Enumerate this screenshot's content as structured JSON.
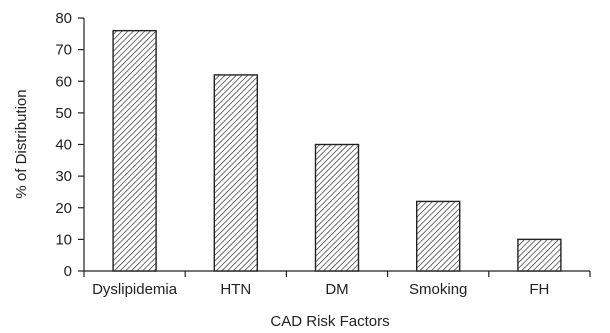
{
  "chart_data": {
    "type": "bar",
    "title": "",
    "xlabel": "CAD Risk Factors",
    "ylabel": "% of Distribution",
    "categories": [
      "Dyslipidemia",
      "HTN",
      "DM",
      "Smoking",
      "FH"
    ],
    "values": [
      76,
      62,
      40,
      22,
      10
    ],
    "ylim": [
      0,
      80
    ],
    "yticks": [
      0,
      10,
      20,
      30,
      40,
      50,
      60,
      70,
      80
    ],
    "grid": false,
    "bar_fill": "diagonal-hatch",
    "bar_color": "#222222"
  }
}
